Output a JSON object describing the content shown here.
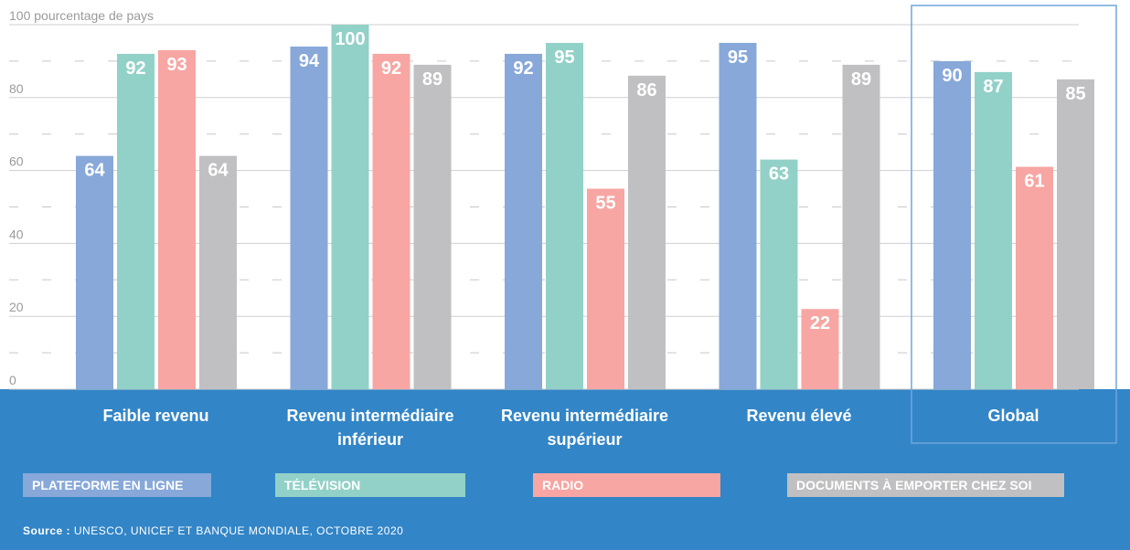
{
  "chart_data": {
    "type": "bar",
    "categories": [
      "Faible revenu",
      "Revenu intermédiaire inférieur",
      "Revenu intermédiaire supérieur",
      "Revenu élevé",
      "Global"
    ],
    "series": [
      {
        "name": "PLATEFORME EN LIGNE",
        "color": "#87a8d9",
        "values": [
          64,
          94,
          92,
          95,
          90
        ]
      },
      {
        "name": "TÉLÉVISION",
        "color": "#92d1c7",
        "values": [
          92,
          100,
          95,
          63,
          87
        ]
      },
      {
        "name": "RADIO",
        "color": "#f7a6a3",
        "values": [
          93,
          92,
          55,
          22,
          61
        ]
      },
      {
        "name": "DOCUMENTS À EMPORTER CHEZ SOI",
        "color": "#c0c0c2",
        "values": [
          64,
          89,
          86,
          89,
          85
        ]
      }
    ],
    "ylim": [
      0,
      100
    ],
    "yticks": [
      0,
      20,
      40,
      60,
      80,
      {
        "value": 100,
        "label": "100 pourcentage de pays"
      }
    ],
    "minor_yticks": [
      10,
      30,
      50,
      70,
      90
    ],
    "grid": true,
    "highlight_category": 4,
    "source_label": "Source :",
    "source": "UNESCO, UNICEF ET BANQUE MONDIALE, OCTOBRE 2020"
  }
}
